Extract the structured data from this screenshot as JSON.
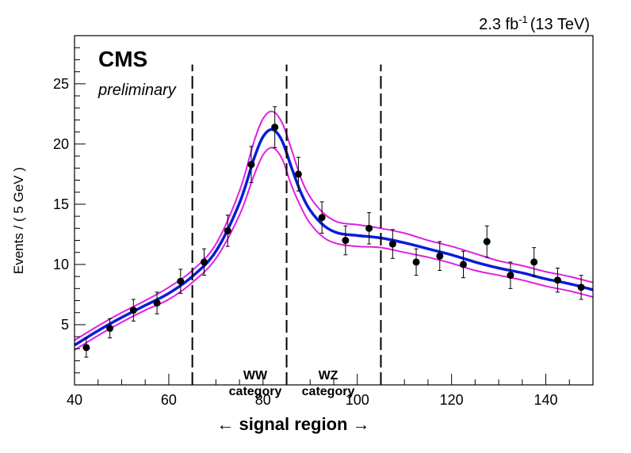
{
  "chart_data": {
    "type": "scatter",
    "lumi_label": "2.3 fb",
    "lumi_exp": "-1",
    "lumi_energy": "(13 TeV)",
    "experiment": "CMS",
    "status": "preliminary",
    "ylabel": "Events / ( 5 GeV )",
    "xlabel": "← signal region →",
    "xlim": [
      40,
      150
    ],
    "ylim": [
      0,
      29
    ],
    "xticks": [
      40,
      60,
      80,
      100,
      120,
      140
    ],
    "yticks": [
      5,
      10,
      15,
      20,
      25
    ],
    "category_lines": [
      65,
      85,
      105
    ],
    "categories": [
      {
        "line1": "WW",
        "line2": "category"
      },
      {
        "line1": "WZ",
        "line2": "category"
      }
    ],
    "colors": {
      "fit": "#0a1bd8",
      "band": "#e020e0",
      "data": "#000000"
    },
    "series": [
      {
        "kind": "data",
        "x": [
          42.5,
          47.5,
          52.5,
          57.5,
          62.5,
          67.5,
          72.5,
          77.5,
          82.5,
          87.5,
          92.5,
          97.5,
          102.5,
          107.5,
          112.5,
          117.5,
          122.5,
          127.5,
          132.5,
          137.5,
          142.5,
          147.5
        ],
        "y": [
          3.1,
          4.7,
          6.2,
          6.8,
          8.6,
          10.2,
          12.8,
          18.3,
          21.4,
          17.5,
          13.9,
          12.0,
          13.0,
          11.7,
          10.2,
          10.7,
          10.0,
          11.9,
          9.1,
          10.2,
          8.7,
          8.1
        ],
        "err": [
          0.8,
          0.8,
          0.9,
          0.9,
          1.0,
          1.1,
          1.3,
          1.5,
          1.7,
          1.4,
          1.3,
          1.2,
          1.3,
          1.2,
          1.1,
          1.2,
          1.1,
          1.3,
          1.1,
          1.2,
          1.0,
          1.0
        ]
      },
      {
        "kind": "fit",
        "x": [
          40,
          45,
          50,
          55,
          60,
          65,
          70,
          75,
          78,
          80,
          82,
          84,
          86,
          88,
          90,
          93,
          96,
          100,
          105,
          110,
          115,
          120,
          125,
          130,
          135,
          140,
          145,
          150
        ],
        "y": [
          3.3,
          4.5,
          5.6,
          6.6,
          7.6,
          9.0,
          11.1,
          15.1,
          18.7,
          20.6,
          21.2,
          20.3,
          18.1,
          16.0,
          14.5,
          13.2,
          12.6,
          12.4,
          12.2,
          11.8,
          11.3,
          10.8,
          10.2,
          9.7,
          9.3,
          8.8,
          8.4,
          7.9
        ]
      },
      {
        "kind": "band_upper",
        "x": [
          40,
          45,
          50,
          55,
          60,
          65,
          70,
          75,
          78,
          80,
          82,
          84,
          86,
          88,
          90,
          93,
          96,
          100,
          105,
          110,
          115,
          120,
          125,
          130,
          135,
          140,
          145,
          150
        ],
        "y": [
          3.7,
          4.9,
          6.0,
          7.0,
          8.1,
          9.5,
          11.7,
          16.1,
          20.1,
          22.1,
          22.7,
          21.8,
          19.6,
          17.2,
          15.6,
          14.2,
          13.5,
          13.3,
          13.0,
          12.6,
          12.0,
          11.5,
          10.9,
          10.3,
          9.9,
          9.4,
          9.0,
          8.5
        ]
      },
      {
        "kind": "band_lower",
        "x": [
          40,
          45,
          50,
          55,
          60,
          65,
          70,
          75,
          78,
          80,
          82,
          84,
          86,
          88,
          90,
          93,
          96,
          100,
          105,
          110,
          115,
          120,
          125,
          130,
          135,
          140,
          145,
          150
        ],
        "y": [
          2.9,
          4.1,
          5.2,
          6.2,
          7.1,
          8.5,
          10.5,
          14.1,
          17.3,
          19.1,
          19.7,
          18.8,
          16.6,
          14.8,
          13.4,
          12.2,
          11.7,
          11.5,
          11.4,
          11.0,
          10.6,
          10.1,
          9.5,
          9.1,
          8.7,
          8.2,
          7.8,
          7.3
        ]
      }
    ]
  }
}
